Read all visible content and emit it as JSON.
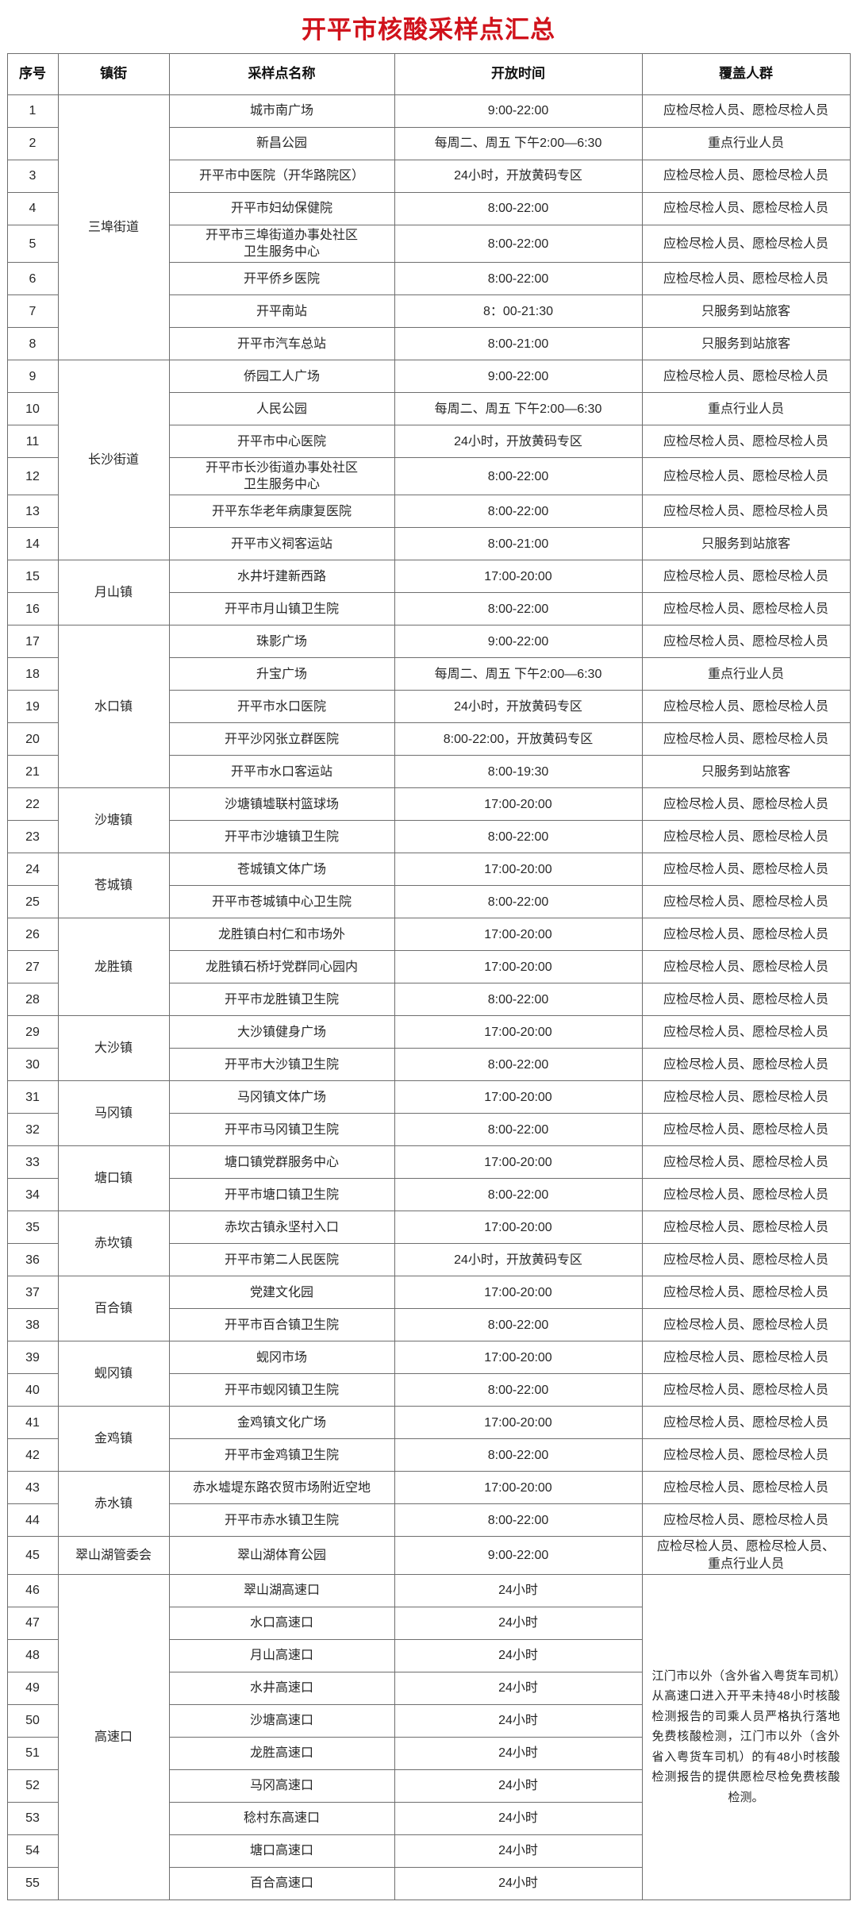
{
  "title": "开平市核酸采样点汇总",
  "colors": {
    "title": "#d0121b",
    "border": "#6e6e6e",
    "text": "#262626",
    "header_text": "#111111",
    "background": "#ffffff"
  },
  "table": {
    "headers": [
      "序号",
      "镇街",
      "采样点名称",
      "开放时间",
      "覆盖人群"
    ],
    "highway_note": "江门市以外（含外省入粤货车司机）从高速口进入开平未持48小时核酸检测报告的司乘人员严格执行落地免费核酸检测，江门市以外（含外省入粤货车司机）的有48小时核酸检测报告的提供愿检尽检免费核酸检测。",
    "rows": [
      {
        "no": "1",
        "town": "三埠街道",
        "town_span": 8,
        "name": "城市南广场",
        "time": "9:00-22:00",
        "coverage": "应检尽检人员、愿检尽检人员"
      },
      {
        "no": "2",
        "name": "新昌公园",
        "time": "每周二、周五 下午2:00—6:30",
        "coverage": "重点行业人员"
      },
      {
        "no": "3",
        "name": "开平市中医院（开华路院区）",
        "time": "24小时，开放黄码专区",
        "coverage": "应检尽检人员、愿检尽检人员"
      },
      {
        "no": "4",
        "name": "开平市妇幼保健院",
        "time": "8:00-22:00",
        "coverage": "应检尽检人员、愿检尽检人员"
      },
      {
        "no": "5",
        "name": "开平市三埠街道办事处社区\n卫生服务中心",
        "time": "8:00-22:00",
        "coverage": "应检尽检人员、愿检尽检人员"
      },
      {
        "no": "6",
        "name": "开平侨乡医院",
        "time": "8:00-22:00",
        "coverage": "应检尽检人员、愿检尽检人员"
      },
      {
        "no": "7",
        "name": "开平南站",
        "time": "8：00-21:30",
        "coverage": "只服务到站旅客"
      },
      {
        "no": "8",
        "name": "开平市汽车总站",
        "time": "8:00-21:00",
        "coverage": "只服务到站旅客"
      },
      {
        "no": "9",
        "town": "长沙街道",
        "town_span": 6,
        "name": "侨园工人广场",
        "time": "9:00-22:00",
        "coverage": "应检尽检人员、愿检尽检人员"
      },
      {
        "no": "10",
        "name": "人民公园",
        "time": "每周二、周五 下午2:00—6:30",
        "coverage": "重点行业人员"
      },
      {
        "no": "11",
        "name": "开平市中心医院",
        "time": "24小时，开放黄码专区",
        "coverage": "应检尽检人员、愿检尽检人员"
      },
      {
        "no": "12",
        "name": "开平市长沙街道办事处社区\n卫生服务中心",
        "time": "8:00-22:00",
        "coverage": "应检尽检人员、愿检尽检人员"
      },
      {
        "no": "13",
        "name": "开平东华老年病康复医院",
        "time": "8:00-22:00",
        "coverage": "应检尽检人员、愿检尽检人员"
      },
      {
        "no": "14",
        "name": "开平市义祠客运站",
        "time": "8:00-21:00",
        "coverage": "只服务到站旅客"
      },
      {
        "no": "15",
        "town": "月山镇",
        "town_span": 2,
        "name": "水井圩建新西路",
        "time": "17:00-20:00",
        "coverage": "应检尽检人员、愿检尽检人员"
      },
      {
        "no": "16",
        "name": "开平市月山镇卫生院",
        "time": "8:00-22:00",
        "coverage": "应检尽检人员、愿检尽检人员"
      },
      {
        "no": "17",
        "town": "水口镇",
        "town_span": 5,
        "name": "珠影广场",
        "time": "9:00-22:00",
        "coverage": "应检尽检人员、愿检尽检人员"
      },
      {
        "no": "18",
        "name": "升宝广场",
        "time": "每周二、周五 下午2:00—6:30",
        "coverage": "重点行业人员"
      },
      {
        "no": "19",
        "name": "开平市水口医院",
        "time": "24小时，开放黄码专区",
        "coverage": "应检尽检人员、愿检尽检人员"
      },
      {
        "no": "20",
        "name": "开平沙冈张立群医院",
        "time": "8:00-22:00，开放黄码专区",
        "coverage": "应检尽检人员、愿检尽检人员"
      },
      {
        "no": "21",
        "name": "开平市水口客运站",
        "time": "8:00-19:30",
        "coverage": "只服务到站旅客"
      },
      {
        "no": "22",
        "town": "沙塘镇",
        "town_span": 2,
        "name": "沙塘镇墟联村篮球场",
        "time": "17:00-20:00",
        "coverage": "应检尽检人员、愿检尽检人员"
      },
      {
        "no": "23",
        "name": "开平市沙塘镇卫生院",
        "time": "8:00-22:00",
        "coverage": "应检尽检人员、愿检尽检人员"
      },
      {
        "no": "24",
        "town": "苍城镇",
        "town_span": 2,
        "name": "苍城镇文体广场",
        "time": "17:00-20:00",
        "coverage": "应检尽检人员、愿检尽检人员"
      },
      {
        "no": "25",
        "name": "开平市苍城镇中心卫生院",
        "time": "8:00-22:00",
        "coverage": "应检尽检人员、愿检尽检人员"
      },
      {
        "no": "26",
        "town": "龙胜镇",
        "town_span": 3,
        "name": "龙胜镇白村仁和市场外",
        "time": "17:00-20:00",
        "coverage": "应检尽检人员、愿检尽检人员"
      },
      {
        "no": "27",
        "name": "龙胜镇石桥圩党群同心园内",
        "time": "17:00-20:00",
        "coverage": "应检尽检人员、愿检尽检人员"
      },
      {
        "no": "28",
        "name": "开平市龙胜镇卫生院",
        "time": "8:00-22:00",
        "coverage": "应检尽检人员、愿检尽检人员"
      },
      {
        "no": "29",
        "town": "大沙镇",
        "town_span": 2,
        "name": "大沙镇健身广场",
        "time": "17:00-20:00",
        "coverage": "应检尽检人员、愿检尽检人员"
      },
      {
        "no": "30",
        "name": "开平市大沙镇卫生院",
        "time": "8:00-22:00",
        "coverage": "应检尽检人员、愿检尽检人员"
      },
      {
        "no": "31",
        "town": "马冈镇",
        "town_span": 2,
        "name": "马冈镇文体广场",
        "time": "17:00-20:00",
        "coverage": "应检尽检人员、愿检尽检人员"
      },
      {
        "no": "32",
        "name": "开平市马冈镇卫生院",
        "time": "8:00-22:00",
        "coverage": "应检尽检人员、愿检尽检人员"
      },
      {
        "no": "33",
        "town": "塘口镇",
        "town_span": 2,
        "name": "塘口镇党群服务中心",
        "time": "17:00-20:00",
        "coverage": "应检尽检人员、愿检尽检人员"
      },
      {
        "no": "34",
        "name": "开平市塘口镇卫生院",
        "time": "8:00-22:00",
        "coverage": "应检尽检人员、愿检尽检人员"
      },
      {
        "no": "35",
        "town": "赤坎镇",
        "town_span": 2,
        "name": "赤坎古镇永坚村入口",
        "time": "17:00-20:00",
        "coverage": "应检尽检人员、愿检尽检人员"
      },
      {
        "no": "36",
        "name": "开平市第二人民医院",
        "time": "24小时，开放黄码专区",
        "coverage": "应检尽检人员、愿检尽检人员"
      },
      {
        "no": "37",
        "town": "百合镇",
        "town_span": 2,
        "name": "党建文化园",
        "time": "17:00-20:00",
        "coverage": "应检尽检人员、愿检尽检人员"
      },
      {
        "no": "38",
        "name": "开平市百合镇卫生院",
        "time": "8:00-22:00",
        "coverage": "应检尽检人员、愿检尽检人员"
      },
      {
        "no": "39",
        "town": "蚬冈镇",
        "town_span": 2,
        "name": "蚬冈市场",
        "time": "17:00-20:00",
        "coverage": "应检尽检人员、愿检尽检人员"
      },
      {
        "no": "40",
        "name": "开平市蚬冈镇卫生院",
        "time": "8:00-22:00",
        "coverage": "应检尽检人员、愿检尽检人员"
      },
      {
        "no": "41",
        "town": "金鸡镇",
        "town_span": 2,
        "name": "金鸡镇文化广场",
        "time": "17:00-20:00",
        "coverage": "应检尽检人员、愿检尽检人员"
      },
      {
        "no": "42",
        "name": "开平市金鸡镇卫生院",
        "time": "8:00-22:00",
        "coverage": "应检尽检人员、愿检尽检人员"
      },
      {
        "no": "43",
        "town": "赤水镇",
        "town_span": 2,
        "name": "赤水墟堤东路农贸市场附近空地",
        "time": "17:00-20:00",
        "coverage": "应检尽检人员、愿检尽检人员"
      },
      {
        "no": "44",
        "name": "开平市赤水镇卫生院",
        "time": "8:00-22:00",
        "coverage": "应检尽检人员、愿检尽检人员"
      },
      {
        "no": "45",
        "town": "翠山湖管委会",
        "town_span": 1,
        "name": "翠山湖体育公园",
        "time": "9:00-22:00",
        "coverage": "应检尽检人员、愿检尽检人员、\n重点行业人员"
      },
      {
        "no": "46",
        "town": "高速口",
        "town_span": 10,
        "name": "翠山湖高速口",
        "time": "24小时",
        "note_span": 10
      },
      {
        "no": "47",
        "name": "水口高速口",
        "time": "24小时"
      },
      {
        "no": "48",
        "name": "月山高速口",
        "time": "24小时"
      },
      {
        "no": "49",
        "name": "水井高速口",
        "time": "24小时"
      },
      {
        "no": "50",
        "name": "沙塘高速口",
        "time": "24小时"
      },
      {
        "no": "51",
        "name": "龙胜高速口",
        "time": "24小时"
      },
      {
        "no": "52",
        "name": "马冈高速口",
        "time": "24小时"
      },
      {
        "no": "53",
        "name": "稔村东高速口",
        "time": "24小时"
      },
      {
        "no": "54",
        "name": "塘口高速口",
        "time": "24小时"
      },
      {
        "no": "55",
        "name": "百合高速口",
        "time": "24小时"
      }
    ]
  }
}
